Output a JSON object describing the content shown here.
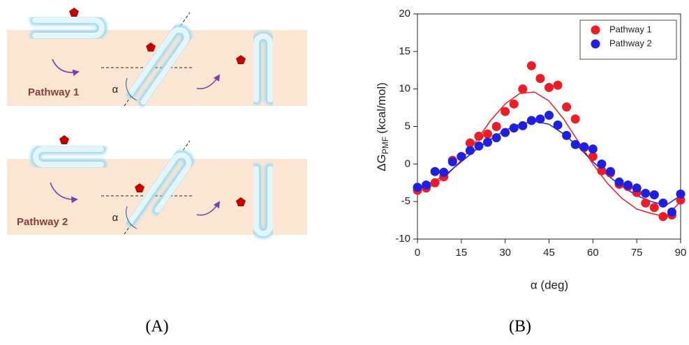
{
  "diagram": {
    "pathways": [
      {
        "label": "Pathway 1",
        "angle_label": "α"
      },
      {
        "label": "Pathway 2",
        "angle_label": "α"
      }
    ],
    "panel_label": "(A)"
  },
  "chart_data": {
    "type": "scatter",
    "panel_label": "(B)",
    "x_label": "α (deg)",
    "y_label": {
      "main": "ΔG",
      "sub": "PMF",
      "unit": "(kcal/mol)"
    },
    "xlim": [
      0,
      90
    ],
    "xticks": [
      0,
      15,
      30,
      45,
      60,
      75,
      90
    ],
    "ylim": [
      -10,
      20
    ],
    "yticks": [
      -10,
      -5,
      0,
      5,
      10,
      15,
      20
    ],
    "legend": "upper right",
    "x": [
      0,
      3,
      6,
      9,
      12,
      15,
      18,
      21,
      24,
      27,
      30,
      33,
      36,
      39,
      42,
      45,
      48,
      51,
      54,
      57,
      60,
      63,
      66,
      69,
      72,
      75,
      78,
      81,
      84,
      87,
      90
    ],
    "fit_x": [
      0,
      5,
      10,
      15,
      20,
      25,
      30,
      35,
      40,
      45,
      50,
      55,
      60,
      65,
      70,
      75,
      80,
      85,
      90
    ],
    "series": [
      {
        "name": "Pathway 1",
        "color": "#ee1c24",
        "values": [
          -3.5,
          -3.2,
          -2.5,
          -1.7,
          0.5,
          1.0,
          2.8,
          3.7,
          4.0,
          5.0,
          7.0,
          8.0,
          10.0,
          13.1,
          11.4,
          10.2,
          10.5,
          7.6,
          6.0,
          2.2,
          1.0,
          -0.9,
          -1.2,
          -2.7,
          -3.0,
          -3.8,
          -5.2,
          -5.8,
          -7.0,
          -6.8,
          -4.8
        ],
        "fit_values": [
          -3.6,
          -2.9,
          -1.5,
          0.5,
          3.0,
          5.8,
          8.0,
          9.4,
          9.6,
          8.4,
          6.0,
          3.0,
          0.0,
          -2.6,
          -4.6,
          -6.0,
          -6.6,
          -7.0,
          -5.0
        ]
      },
      {
        "name": "Pathway 2",
        "color": "#1f1fe0",
        "values": [
          -3.1,
          -2.8,
          -1.0,
          -1.1,
          0.3,
          1.0,
          1.8,
          2.4,
          2.9,
          3.5,
          4.2,
          4.8,
          5.1,
          5.8,
          6.0,
          6.5,
          5.2,
          3.8,
          2.6,
          2.3,
          2.0,
          0.0,
          -1.0,
          -2.4,
          -2.8,
          -3.2,
          -3.9,
          -4.1,
          -5.2,
          -6.4,
          -4.0
        ],
        "fit_values": [
          -3.2,
          -2.5,
          -1.3,
          0.3,
          1.9,
          3.3,
          4.5,
          5.3,
          5.7,
          5.3,
          4.0,
          2.3,
          0.3,
          -1.5,
          -3.0,
          -4.2,
          -5.0,
          -5.5,
          -4.2
        ]
      }
    ]
  }
}
